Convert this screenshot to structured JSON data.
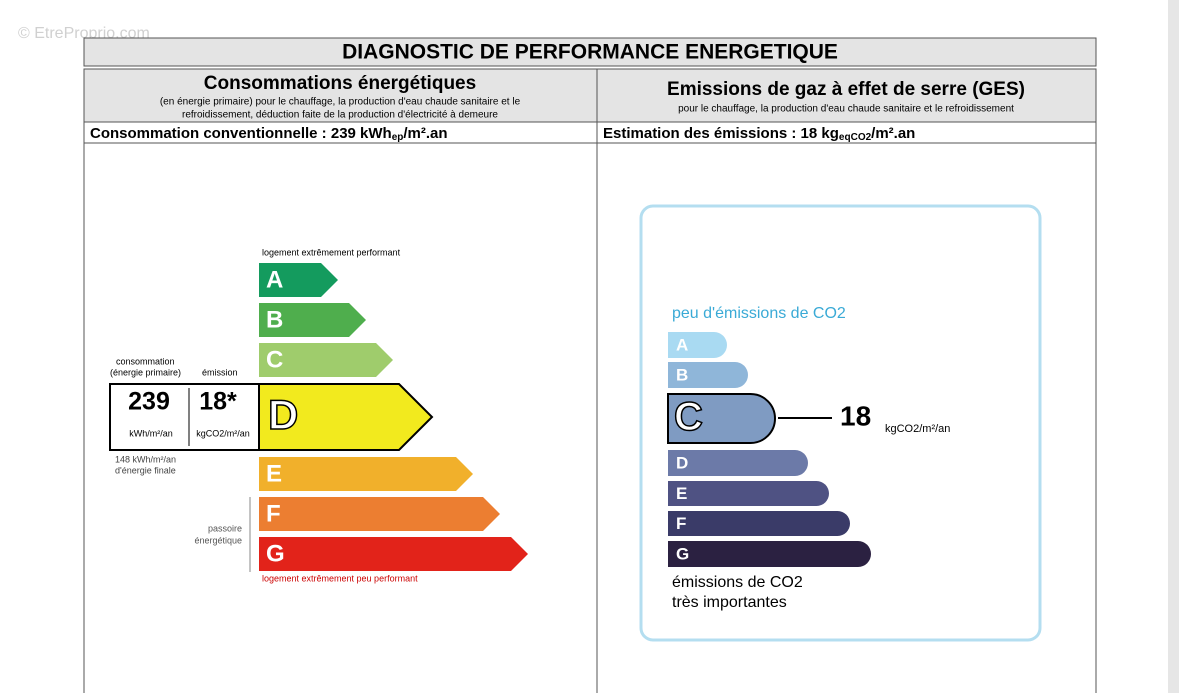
{
  "watermark": "© EtreProprio.com",
  "title": "DIAGNOSTIC DE PERFORMANCE ENERGETIQUE",
  "energy": {
    "heading": "Consommations énergétiques",
    "subheading_lines": [
      "(en énergie primaire) pour le chauffage, la production d'eau chaude sanitaire et le",
      "refroidissement, déduction faite de la production d'électricité à demeure"
    ],
    "estimate_label": "Consommation conventionnelle : 239 kWh",
    "estimate_sub": "ep",
    "estimate_unit": "/m².an",
    "top_label": "logement extrêmement performant",
    "bottom_label": "logement extrêmement peu performant",
    "classes": [
      "A",
      "B",
      "C",
      "D",
      "E",
      "F",
      "G"
    ],
    "consumption_header_lines": [
      "consommation",
      "(énergie primaire)"
    ],
    "emission_header": "émission",
    "consumption_value": "239",
    "emission_value": "18*",
    "consumption_unit": "kWh/m²/an",
    "emission_unit": "kgCO2/m²/an",
    "final_energy_lines": [
      "148 kWh/m²/an",
      "d'énergie finale"
    ],
    "side_label_lines": [
      "passoire",
      "énergétique"
    ]
  },
  "ges": {
    "heading": "Emissions de gaz à effet de serre (GES)",
    "subheading": "pour le chauffage, la production d'eau chaude sanitaire et le refroidissement",
    "estimate_label": "Estimation des émissions : 18 kg",
    "estimate_sub": "eqCO2",
    "estimate_unit": "/m².an",
    "top_label": "peu d'émissions de CO2",
    "classes": [
      "A",
      "B",
      "C",
      "D",
      "E",
      "F",
      "G"
    ],
    "value": "18",
    "unit": "kgCO2/m²/an",
    "bottom_label_lines": [
      "émissions de CO2",
      "très importantes"
    ]
  }
}
